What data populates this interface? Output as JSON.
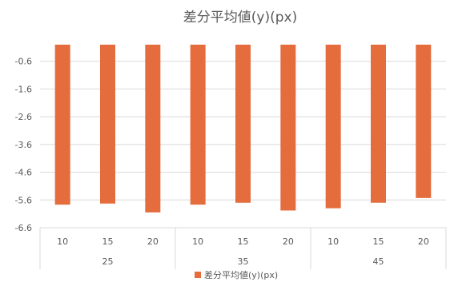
{
  "chart_data": {
    "type": "bar",
    "title": "差分平均値(y)(px)",
    "categories": [
      {
        "inner": "10",
        "outer": "25"
      },
      {
        "inner": "15",
        "outer": "25"
      },
      {
        "inner": "20",
        "outer": "25"
      },
      {
        "inner": "10",
        "outer": "35"
      },
      {
        "inner": "15",
        "outer": "35"
      },
      {
        "inner": "20",
        "outer": "35"
      },
      {
        "inner": "10",
        "outer": "45"
      },
      {
        "inner": "15",
        "outer": "45"
      },
      {
        "inner": "20",
        "outer": "45"
      }
    ],
    "outer_groups": [
      "25",
      "35",
      "45"
    ],
    "series": [
      {
        "name": "差分平均値(y)(px)",
        "color": "#E46C3D",
        "values": [
          -5.77,
          -5.73,
          -6.05,
          -5.77,
          -5.7,
          -5.98,
          -5.9,
          -5.7,
          -5.53
        ]
      }
    ],
    "y_axis": {
      "min": -6.6,
      "max": 0.4,
      "ticks": [
        -0.6,
        -1.6,
        -2.6,
        -3.6,
        -4.6,
        -5.6,
        -6.6
      ],
      "tick_labels": [
        "-0.6",
        "-1.6",
        "-2.6",
        "-3.6",
        "-4.6",
        "-5.6",
        "-6.6"
      ],
      "bars_from": 0
    },
    "grid": "horizontal",
    "legend": {
      "position": "bottom",
      "label": "差分平均値(y)(px)"
    },
    "colors": {
      "gridline": "#D9D9D9",
      "text": "#595959"
    }
  }
}
